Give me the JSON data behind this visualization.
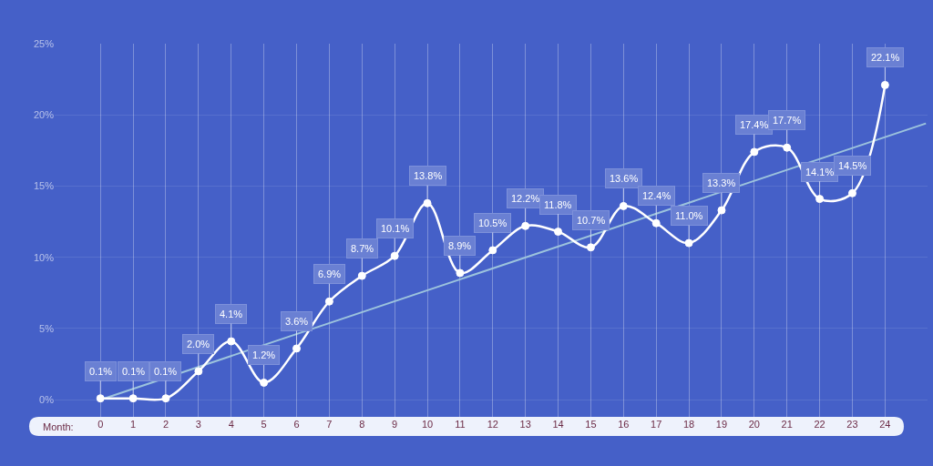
{
  "chart_data": {
    "type": "line",
    "x": [
      0,
      1,
      2,
      3,
      4,
      5,
      6,
      7,
      8,
      9,
      10,
      11,
      12,
      13,
      14,
      15,
      16,
      17,
      18,
      19,
      20,
      21,
      22,
      23,
      24
    ],
    "xlabel": "Month:",
    "xlim": [
      -1.4,
      25.3
    ],
    "xticks": [
      0,
      1,
      2,
      3,
      4,
      5,
      6,
      7,
      8,
      9,
      10,
      11,
      12,
      13,
      14,
      15,
      16,
      17,
      18,
      19,
      20,
      21,
      22,
      23,
      24
    ],
    "ylim": [
      -1.2,
      25
    ],
    "yticks": [
      {
        "value": 0,
        "label": "0%"
      },
      {
        "value": 5,
        "label": "5%"
      },
      {
        "value": 10,
        "label": "10%"
      },
      {
        "value": 15,
        "label": "15%"
      },
      {
        "value": 20,
        "label": "20%"
      },
      {
        "value": 25,
        "label": "25%"
      }
    ],
    "grid": true,
    "marker": "circle",
    "series": [
      {
        "color": "#ffffff",
        "values": [
          0.1,
          0.1,
          0.1,
          2.0,
          4.1,
          1.2,
          3.6,
          6.9,
          8.7,
          10.1,
          13.8,
          8.9,
          10.5,
          12.2,
          11.8,
          10.7,
          13.6,
          12.4,
          11.0,
          13.3,
          17.4,
          17.7,
          14.1,
          14.5,
          22.1
        ],
        "value_labels": [
          "0.1%",
          "0.1%",
          "0.1%",
          "2.0%",
          "4.1%",
          "1.2%",
          "3.6%",
          "6.9%",
          "8.7%",
          "10.1%",
          "13.8%",
          "8.9%",
          "10.5%",
          "12.2%",
          "11.8%",
          "10.7%",
          "13.6%",
          "12.4%",
          "11.0%",
          "13.3%",
          "17.4%",
          "17.7%",
          "14.1%",
          "14.5%",
          "22.1%"
        ]
      },
      {
        "color": "#9cc3dd",
        "x": [
          0,
          25.25
        ],
        "values": [
          0,
          19.4
        ],
        "marker": "none"
      }
    ]
  }
}
